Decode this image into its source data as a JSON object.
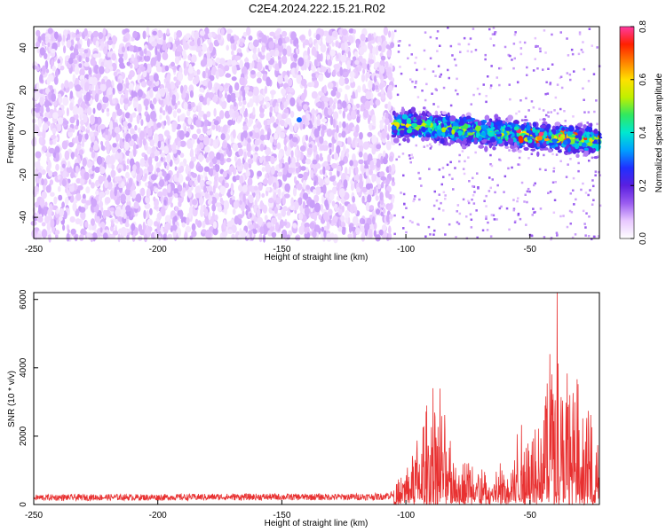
{
  "title": "C2E4.2024.222.15.21.R02",
  "colors": {
    "snr_line": "#e83030",
    "colormap": [
      "#ffffff",
      "#e8c8ff",
      "#9a5cf0",
      "#5a1fe0",
      "#2030ff",
      "#00a0ff",
      "#00e8d0",
      "#30e860",
      "#c0f000",
      "#ffe000",
      "#ff8000",
      "#ff2000",
      "#ff3aa0"
    ]
  },
  "chart_data": [
    {
      "type": "heatmap",
      "xlabel": "Height of straight line (km)",
      "ylabel": "Frequency (Hz)",
      "xlim": [
        -250,
        -22
      ],
      "ylim": [
        -50,
        50
      ],
      "xticks": [
        -250,
        -200,
        -150,
        -100,
        -50
      ],
      "yticks": [
        -40,
        -20,
        0,
        20,
        40
      ],
      "colorbar": {
        "label": "Normalized spectral amplitude",
        "range": [
          0.0,
          0.8
        ],
        "ticks": [
          "0.0",
          "0.2",
          "0.4",
          "0.6",
          "0.8"
        ]
      },
      "regions": [
        {
          "x_range": [
            -250,
            -105
          ],
          "y_range": [
            -50,
            48
          ],
          "amplitude": 0.05,
          "pattern": "broadband speckle"
        },
        {
          "x_range": [
            -105,
            -22
          ],
          "center_y_at_start": 4,
          "center_y_at_end": -4,
          "half_width_hz": 7,
          "amplitude": 0.3,
          "max_amplitude": 0.8,
          "pattern": "narrow band"
        }
      ],
      "points": [
        {
          "x": -143,
          "y": 6,
          "amplitude": 0.3
        }
      ]
    },
    {
      "type": "line",
      "xlabel": "Height of straight line (km)",
      "ylabel": "SNR (10 * v/v)",
      "xlim": [
        -250,
        -22
      ],
      "ylim": [
        0,
        6200
      ],
      "xticks": [
        -250,
        -200,
        -150,
        -100,
        -50
      ],
      "yticks": [
        0,
        2000,
        4000,
        6000
      ],
      "series": [
        {
          "x": [
            -250,
            -225,
            -200,
            -175,
            -150,
            -125,
            -110,
            -104,
            -100,
            -95,
            -90,
            -88,
            -85,
            -80,
            -75,
            -70,
            -65,
            -60,
            -55,
            -50,
            -45,
            -42,
            -40,
            -38,
            -35,
            -30,
            -25,
            -22
          ],
          "y": [
            200,
            210,
            210,
            220,
            220,
            220,
            230,
            300,
            700,
            1200,
            1600,
            2600,
            1400,
            1100,
            900,
            600,
            500,
            800,
            1200,
            1500,
            2000,
            2600,
            3800,
            2500,
            2200,
            1800,
            1500,
            1200
          ],
          "spikes": [
            {
              "x": -89,
              "y": 3400
            },
            {
              "x": -39,
              "y": 6200
            },
            {
              "x": -42,
              "y": 4400
            },
            {
              "x": -34,
              "y": 3200
            }
          ]
        }
      ]
    }
  ]
}
